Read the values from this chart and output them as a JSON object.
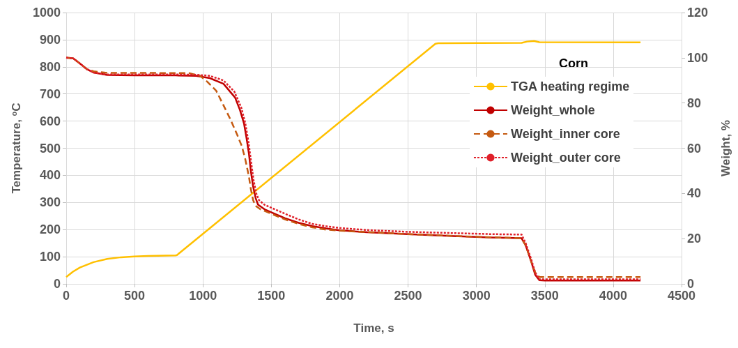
{
  "chart_data": {
    "type": "line",
    "xlabel": "Time, s",
    "ylabel": "Temperature, $^{o}$C",
    "y2label": "Weight, %",
    "legend_title": "Corn",
    "xlim": [
      0,
      4500
    ],
    "xticks": [
      0,
      500,
      1000,
      1500,
      2000,
      2500,
      3000,
      3500,
      4000,
      4500
    ],
    "ylim": [
      0,
      1000
    ],
    "yticks": [
      0,
      100,
      200,
      300,
      400,
      500,
      600,
      700,
      800,
      900,
      1000
    ],
    "y2lim": [
      0,
      120
    ],
    "y2ticks": [
      0,
      20,
      40,
      60,
      80,
      100,
      120
    ],
    "grid": true,
    "legend": "right",
    "marker": "none",
    "series": [
      {
        "name": "TGA heating regime",
        "color": "#ffc000",
        "line_style": "solid",
        "x": [
          0,
          50,
          100,
          200,
          300,
          400,
          500,
          600,
          800,
          810,
          2700,
          2720,
          3330,
          3370,
          3420,
          3460,
          4200
        ],
        "values": [
          25,
          45,
          60,
          80,
          92,
          98,
          101,
          103,
          105,
          106,
          885,
          887,
          888,
          893,
          895,
          891,
          890
        ]
      },
      {
        "name": "Weight_whole",
        "color": "#c00000",
        "line_style": "solid",
        "axis": "y2",
        "x": [
          0,
          50,
          100,
          150,
          200,
          300,
          500,
          800,
          950,
          1050,
          1150,
          1235,
          1270,
          1300,
          1320,
          1336,
          1350,
          1367,
          1385,
          1403,
          1450,
          1505,
          1600,
          1700,
          1800,
          1900,
          2000,
          2200,
          2500,
          2800,
          3100,
          3330,
          3360,
          3400,
          3430,
          3460,
          3500,
          4200
        ],
        "values": [
          100,
          99.8,
          97.5,
          95,
          93.5,
          92.4,
          92.2,
          92.2,
          92,
          91,
          88.5,
          82.4,
          77,
          71,
          64,
          57.7,
          50,
          43,
          38,
          35,
          33,
          31.5,
          29,
          27,
          25.5,
          24.5,
          23.7,
          22.8,
          22,
          21.2,
          20.5,
          20.2,
          17,
          10,
          4,
          1.6,
          1.5,
          1.5
        ]
      },
      {
        "name": "Weight_inner core",
        "color": "#c55a11",
        "line_style": "dashed",
        "axis": "y2",
        "x": [
          0,
          50,
          100,
          150,
          200,
          300,
          600,
          900,
          980,
          1030,
          1097,
          1150,
          1199,
          1250,
          1285,
          1310,
          1336,
          1350,
          1367,
          1385,
          1420,
          1500,
          1600,
          1700,
          1800,
          1900,
          2000,
          2500,
          3000,
          3330,
          3360,
          3400,
          3430,
          3460,
          4200
        ],
        "values": [
          100,
          99.8,
          97.5,
          95,
          94,
          93.3,
          93.3,
          93.2,
          92,
          89.5,
          85.4,
          79,
          73,
          66,
          60.8,
          55,
          47.5,
          42,
          37,
          34.5,
          33,
          31,
          28.5,
          26.5,
          25,
          24,
          23.5,
          22,
          20.8,
          20.2,
          17,
          10,
          5,
          3,
          3
        ]
      },
      {
        "name": "Weight_outer core",
        "color": "#e0202a",
        "line_style": "dotted",
        "axis": "y2",
        "x": [
          0,
          50,
          100,
          150,
          200,
          300,
          800,
          950,
          1050,
          1150,
          1230,
          1280,
          1310,
          1335,
          1350,
          1370,
          1390,
          1410,
          1450,
          1505,
          1600,
          1700,
          1800,
          1900,
          2000,
          2200,
          2500,
          2800,
          3100,
          3330,
          3360,
          3400,
          3430,
          3460,
          3500,
          4200
        ],
        "values": [
          100,
          99.8,
          97.5,
          95,
          93.5,
          92.6,
          92.6,
          92.5,
          92,
          90,
          85,
          78,
          71,
          62,
          55,
          46,
          40,
          37,
          35,
          33.5,
          31,
          28.5,
          26.5,
          25.5,
          24.7,
          23.8,
          23,
          22.5,
          22,
          21.8,
          18,
          11,
          5,
          2,
          2,
          2
        ]
      }
    ]
  }
}
